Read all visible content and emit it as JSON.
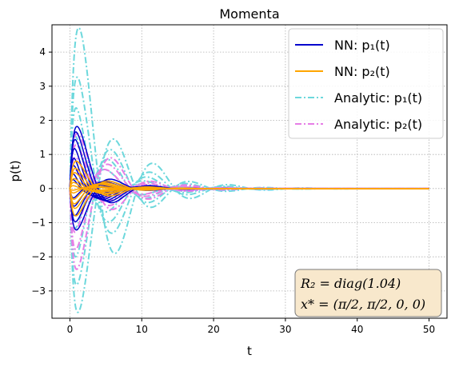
{
  "chart_data": {
    "type": "line",
    "title": "Momenta",
    "xlabel": "t",
    "ylabel": "p(t)",
    "xlim": [
      -2.5,
      52.5
    ],
    "ylim": [
      -3.8,
      4.8
    ],
    "xticks": [
      "0",
      "10",
      "20",
      "30",
      "40",
      "50"
    ],
    "yticks": [
      "−3",
      "−2",
      "−1",
      "0",
      "1",
      "2",
      "3",
      "4"
    ],
    "grid": true,
    "legend_position": "top-right",
    "legend": [
      {
        "label": "NN: p₁(t)",
        "style": "solid",
        "color": "#0000cd"
      },
      {
        "label": "NN: p₂(t)",
        "style": "solid",
        "color": "#ffa500"
      },
      {
        "label": "Analytic: p₁(t)",
        "style": "dashdot",
        "color": "#6dd8dc"
      },
      {
        "label": "Analytic: p₂(t)",
        "style": "dashdot",
        "color": "#e67ee6"
      }
    ],
    "annotation": [
      "R₂ = diag(1.04)",
      "x* = (π/2, π/2, 0, 0)"
    ],
    "series": [
      {
        "group": "analytic_p1",
        "color": "#6dd8dc",
        "style": "dashdot",
        "amps": [
          4.4,
          -3.35,
          3.0,
          -2.6,
          2.2,
          -1.9,
          1.5,
          -1.2
        ],
        "freq": 0.6,
        "decay": 0.18,
        "phase": 0.0
      },
      {
        "group": "analytic_p2",
        "color": "#e67ee6",
        "style": "dashdot",
        "amps": [
          1.5,
          -2.2,
          1.2,
          -1.7,
          0.9,
          -1.3,
          0.6
        ],
        "freq": 0.6,
        "decay": 0.2,
        "phase": 0.2
      },
      {
        "group": "nn_p1",
        "color": "#0000cd",
        "style": "solid",
        "amps": [
          1.9,
          -1.25,
          1.7,
          -1.0,
          1.5,
          -0.85,
          1.3,
          -0.6,
          1.1,
          0.9,
          -0.4,
          0.7,
          0.5
        ],
        "freq": 0.6,
        "decay": 0.3,
        "phase": 0.1
      },
      {
        "group": "nn_p2",
        "color": "#ffa500",
        "style": "solid",
        "amps": [
          0.8,
          -0.8,
          0.6,
          -0.6,
          0.5,
          -0.5,
          0.35,
          -0.4,
          0.25,
          -0.2,
          0.15,
          -0.1
        ],
        "freq": 0.6,
        "decay": 0.28,
        "phase": 0.3
      }
    ]
  }
}
